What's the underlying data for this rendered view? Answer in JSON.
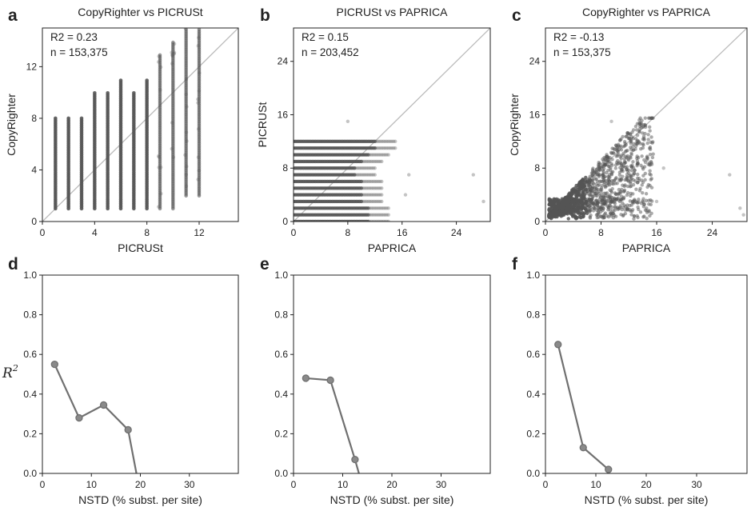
{
  "colors": {
    "points": "#555555",
    "line": "#707070",
    "diagonal": "#bbbbbb",
    "axis": "#222222"
  },
  "panel_labels": [
    "a",
    "b",
    "c",
    "d",
    "e",
    "f"
  ],
  "ylabel_r2": {
    "base": "R",
    "sup": "2"
  },
  "chart_data": [
    {
      "type": "scatter",
      "panel": "a",
      "title": "CopyRighter vs PICRUSt",
      "xlabel": "PICRUSt",
      "ylabel": "CopyRighter",
      "xlim": [
        0,
        15
      ],
      "ylim": [
        0,
        15
      ],
      "xticks": [
        0,
        4,
        8,
        12
      ],
      "yticks": [
        0,
        4,
        8,
        12
      ],
      "diagonal": true,
      "annotation": [
        "R2 = 0.23",
        "n = 153,375"
      ],
      "columns": [
        {
          "x": 1,
          "min": 1,
          "max": 8
        },
        {
          "x": 2,
          "min": 1,
          "max": 8
        },
        {
          "x": 3,
          "min": 1,
          "max": 8
        },
        {
          "x": 4,
          "min": 1,
          "max": 10
        },
        {
          "x": 5,
          "min": 1,
          "max": 10
        },
        {
          "x": 6,
          "min": 1,
          "max": 11
        },
        {
          "x": 7,
          "min": 1,
          "max": 10
        },
        {
          "x": 8,
          "min": 1,
          "max": 11
        },
        {
          "x": 9,
          "min": 1,
          "max": 13
        },
        {
          "x": 10,
          "min": 1,
          "max": 14
        },
        {
          "x": 11,
          "min": 2,
          "max": 15
        },
        {
          "x": 12,
          "min": 2,
          "max": 15
        }
      ]
    },
    {
      "type": "scatter",
      "panel": "b",
      "title": "PICRUSt vs PAPRICA",
      "xlabel": "PAPRICA",
      "ylabel": "PICRUSt",
      "xlim": [
        0,
        29
      ],
      "ylim": [
        0,
        29
      ],
      "xticks": [
        0,
        8,
        16,
        24
      ],
      "yticks": [
        0,
        8,
        16,
        24
      ],
      "diagonal": true,
      "annotation": [
        "R2 = 0.15",
        "n = 203,452"
      ],
      "rows": [
        {
          "y": 0,
          "max": 14
        },
        {
          "y": 1,
          "max": 14
        },
        {
          "y": 2,
          "max": 14
        },
        {
          "y": 3,
          "max": 13
        },
        {
          "y": 4,
          "max": 13
        },
        {
          "y": 5,
          "max": 13
        },
        {
          "y": 6,
          "max": 13
        },
        {
          "y": 7,
          "max": 12
        },
        {
          "y": 8,
          "max": 12
        },
        {
          "y": 9,
          "max": 13
        },
        {
          "y": 10,
          "max": 14
        },
        {
          "y": 11,
          "max": 15
        },
        {
          "y": 12,
          "max": 15
        }
      ],
      "outliers": [
        [
          28,
          3
        ],
        [
          26.5,
          7
        ],
        [
          17,
          7
        ],
        [
          16.5,
          4
        ],
        [
          8,
          15
        ]
      ]
    },
    {
      "type": "scatter",
      "panel": "c",
      "title": "CopyRighter vs PAPRICA",
      "xlabel": "PAPRICA",
      "ylabel": "CopyRighter",
      "xlim": [
        0,
        29
      ],
      "ylim": [
        0,
        29
      ],
      "xticks": [
        0,
        8,
        16,
        24
      ],
      "yticks": [
        0,
        8,
        16,
        24
      ],
      "diagonal": true,
      "annotation": [
        "R2 = -0.13",
        "n = 153,375"
      ],
      "outliers": [
        [
          28,
          2
        ],
        [
          28.5,
          1
        ],
        [
          26.5,
          7
        ],
        [
          17,
          8
        ],
        [
          16,
          3
        ],
        [
          9.5,
          15
        ]
      ]
    },
    {
      "type": "line",
      "panel": "d",
      "xlabel": "NSTD (% subst. per site)",
      "ylabel": "R2",
      "xlim": [
        0,
        40
      ],
      "ylim": [
        0,
        1
      ],
      "xticks": [
        0,
        10,
        20,
        30
      ],
      "yticks": [
        0.0,
        0.2,
        0.4,
        0.6,
        0.8,
        1.0
      ],
      "x": [
        2.5,
        7.5,
        12.5,
        17.5
      ],
      "y": [
        0.55,
        0.28,
        0.345,
        0.22
      ],
      "tail_to": [
        19.2,
        0.0
      ]
    },
    {
      "type": "line",
      "panel": "e",
      "xlabel": "NSTD (% subst. per site)",
      "ylabel": "",
      "xlim": [
        0,
        40
      ],
      "ylim": [
        0,
        1
      ],
      "xticks": [
        0,
        10,
        20,
        30
      ],
      "yticks": [
        0.0,
        0.2,
        0.4,
        0.6,
        0.8,
        1.0
      ],
      "x": [
        2.5,
        7.5,
        12.5
      ],
      "y": [
        0.48,
        0.47,
        0.07
      ],
      "tail_to": [
        13.3,
        0.0
      ]
    },
    {
      "type": "line",
      "panel": "f",
      "xlabel": "NSTD (% subst. per site)",
      "ylabel": "",
      "xlim": [
        0,
        40
      ],
      "ylim": [
        0,
        1
      ],
      "xticks": [
        0,
        10,
        20,
        30
      ],
      "yticks": [
        0.0,
        0.2,
        0.4,
        0.6,
        0.8,
        1.0
      ],
      "x": [
        2.5,
        7.5,
        12.5
      ],
      "y": [
        0.65,
        0.13,
        0.02
      ]
    }
  ]
}
